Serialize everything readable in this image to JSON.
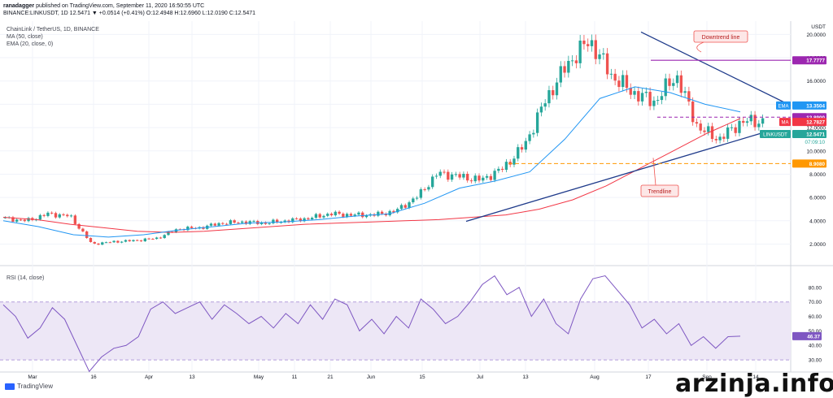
{
  "header": {
    "publisher": "ranadagger",
    "published_text": " published on TradingView.com, September 11, 2020 16:50:55 UTC",
    "quote_line": "BINANCE:LINKUSDT, 1D 12.5471 ▼ +0.0514 (+0.41%) O:12.4948 H:12.6960 L:12.0190 C:12.5471"
  },
  "legend": {
    "symbol": "ChainLink / TetherUS, 1D, BINANCE",
    "ma": "MA (50, close)",
    "ema": "EMA (20, close, 0)",
    "rsi": "RSI (14, close)"
  },
  "currency": "USDT",
  "colors": {
    "up": "#26a69a",
    "down": "#ef5350",
    "ma": "#f23645",
    "ema": "#2196f3",
    "trend": "#1e3a8a",
    "level": "#9c27b0",
    "support": "#ff9800",
    "rsi": "#7e57c2"
  },
  "chart_data": [
    {
      "type": "candlestick",
      "title": "ChainLink / TetherUS, 1D, BINANCE",
      "ylim": [
        0.5,
        21
      ],
      "y_ticks": [
        "20.0000",
        "18.0000",
        "16.0000",
        "14.0000",
        "12.0000",
        "10.0000",
        "8.0000",
        "6.0000",
        "4.0000",
        "2.0000"
      ],
      "x_ticks": [
        "Mar",
        "16",
        "Apr",
        "13",
        "May",
        "11",
        "21",
        "Jun",
        "15",
        "Jul",
        "13",
        "Aug",
        "17",
        "Sep",
        "14"
      ],
      "close_path": [
        [
          "Feb 25",
          4.2
        ],
        [
          "Mar 1",
          4.0
        ],
        [
          "Mar 5",
          4.6
        ],
        [
          "Mar 9",
          4.4
        ],
        [
          "Mar 12",
          2.0
        ],
        [
          "Mar 16",
          2.2
        ],
        [
          "Mar 25",
          2.3
        ],
        [
          "Apr 1",
          2.5
        ],
        [
          "Apr 8",
          3.3
        ],
        [
          "Apr 15",
          3.4
        ],
        [
          "Apr 25",
          3.8
        ],
        [
          "May 5",
          3.9
        ],
        [
          "May 15",
          3.8
        ],
        [
          "May 25",
          4.0
        ],
        [
          "Jun 1",
          4.2
        ],
        [
          "Jun 10",
          4.6
        ],
        [
          "Jun 20",
          4.5
        ],
        [
          "Jun 30",
          4.5
        ],
        [
          "Jul 5",
          4.8
        ],
        [
          "Jul 10",
          6.0
        ],
        [
          "Jul 15",
          8.1
        ],
        [
          "Jul 20",
          7.8
        ],
        [
          "Jul 25",
          7.5
        ],
        [
          "Aug 1",
          8.5
        ],
        [
          "Aug 5",
          10.5
        ],
        [
          "Aug 9",
          14.5
        ],
        [
          "Aug 13",
          17.5
        ],
        [
          "Aug 16",
          19.5
        ],
        [
          "Aug 18",
          16.5
        ],
        [
          "Aug 22",
          15.0
        ],
        [
          "Aug 26",
          14.2
        ],
        [
          "Aug 30",
          16.5
        ],
        [
          "Sep 3",
          12.0
        ],
        [
          "Sep 6",
          11.0
        ],
        [
          "Sep 8",
          12.5
        ],
        [
          "Sep 11",
          12.55
        ]
      ],
      "ma50": [
        4.3,
        4.1,
        3.7,
        3.4,
        3.1,
        3.0,
        3.1,
        3.3,
        3.5,
        3.7,
        3.8,
        3.9,
        4.0,
        4.1,
        4.3,
        4.5,
        5.0,
        5.8,
        7.0,
        8.5,
        10.0,
        11.5,
        12.78
      ],
      "ema20": [
        4.0,
        3.5,
        2.8,
        2.6,
        2.8,
        3.2,
        3.5,
        3.8,
        3.9,
        4.1,
        4.4,
        4.6,
        5.5,
        6.8,
        7.4,
        8.2,
        11.0,
        14.5,
        15.5,
        15.0,
        14.0,
        13.35
      ],
      "horizontal_levels": [
        {
          "value": 17.7777,
          "label": "17.7777"
        },
        {
          "value": 12.89,
          "label": "12.8900"
        },
        {
          "value": 8.908,
          "label": "8.9080"
        }
      ],
      "price_tags": [
        {
          "name": "EMA",
          "value": 13.3504,
          "label": "13.3504"
        },
        {
          "name": "MA",
          "value": 12.7827,
          "label": "12.7827"
        },
        {
          "name": "LINKUSDT",
          "value": 12.5471,
          "label": "12.5471"
        }
      ],
      "countdown": "07:09:10",
      "annotations": [
        "Downtrend line",
        "Trendline"
      ]
    },
    {
      "type": "line",
      "title": "RSI (14, close)",
      "ylim": [
        25,
        90
      ],
      "y_ticks": [
        "80.00",
        "70.00",
        "60.00",
        "50.00",
        "40.00",
        "30.00"
      ],
      "band": [
        30,
        70
      ],
      "values": [
        68,
        60,
        45,
        52,
        66,
        58,
        40,
        22,
        32,
        38,
        40,
        46,
        65,
        70,
        62,
        66,
        70,
        58,
        68,
        62,
        55,
        60,
        52,
        62,
        55,
        68,
        58,
        72,
        68,
        50,
        58,
        48,
        60,
        52,
        72,
        65,
        55,
        60,
        70,
        82,
        88,
        75,
        80,
        60,
        72,
        55,
        48,
        72,
        86,
        88,
        78,
        68,
        52,
        58,
        48,
        55,
        40,
        46,
        38,
        46,
        46.37
      ],
      "current": "46.37"
    }
  ],
  "watermark": "arzinja.info",
  "brand": "TradingView"
}
